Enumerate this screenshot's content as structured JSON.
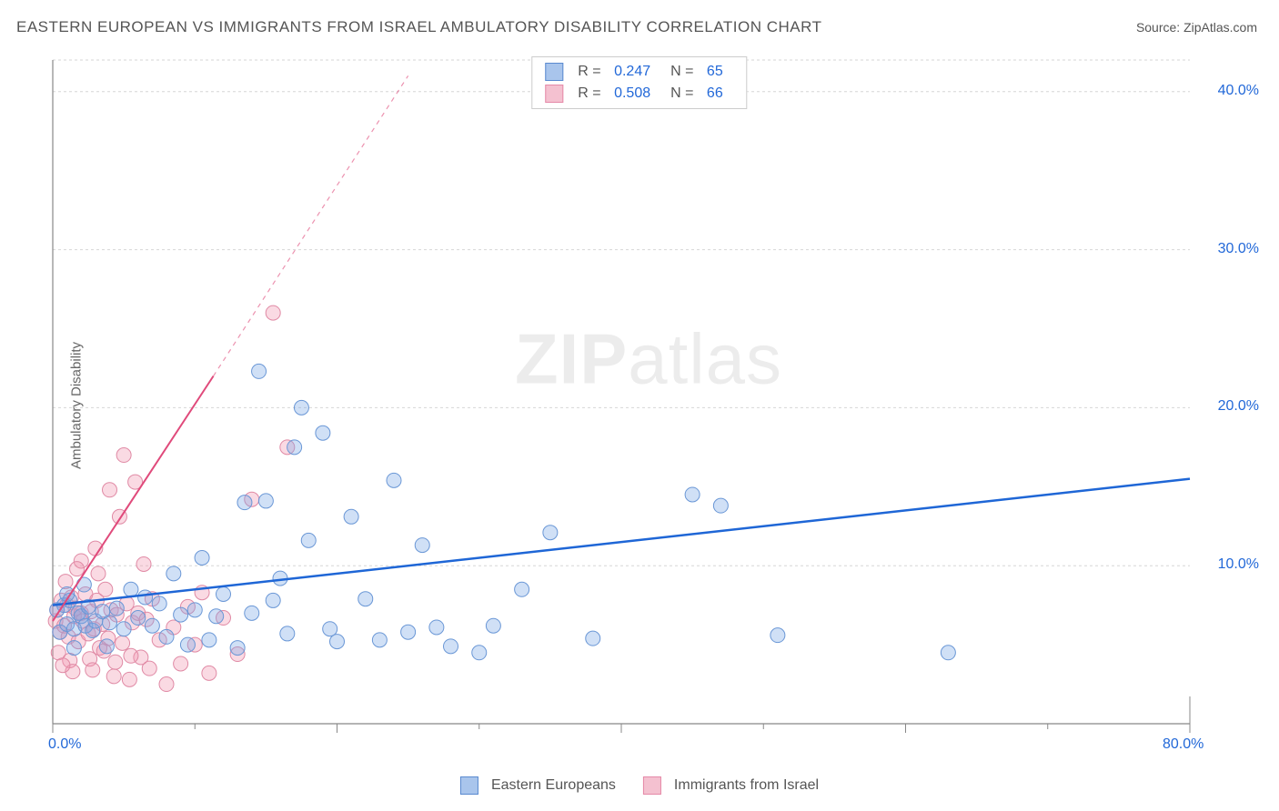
{
  "title": "EASTERN EUROPEAN VS IMMIGRANTS FROM ISRAEL AMBULATORY DISABILITY CORRELATION CHART",
  "source_label": "Source: ",
  "source_name": "ZipAtlas.com",
  "y_axis_label": "Ambulatory Disability",
  "watermark_bold": "ZIP",
  "watermark_rest": "atlas",
  "chart": {
    "type": "scatter",
    "xlim": [
      0,
      80
    ],
    "ylim": [
      0,
      42
    ],
    "x_ticks": [
      0,
      20,
      40,
      60,
      80
    ],
    "y_ticks": [
      10,
      20,
      30,
      40
    ],
    "x_tick_labels": [
      "0.0%",
      "",
      "",
      "",
      "80.0%"
    ],
    "y_tick_labels": [
      "10.0%",
      "20.0%",
      "30.0%",
      "40.0%"
    ],
    "x_minor_ticks": [
      10,
      30,
      50,
      70
    ],
    "grid_color": "#d6d6d6",
    "axis_color": "#888",
    "background_color": "#ffffff",
    "series": [
      {
        "name": "Eastern Europeans",
        "color_fill": "rgba(120,165,230,0.35)",
        "color_stroke": "#6a97d6",
        "swatch_fill": "#a9c5ec",
        "swatch_border": "#5a8ad0",
        "marker_radius": 8,
        "R": "0.247",
        "N": "65",
        "trend": {
          "x1": 0,
          "y1": 7.5,
          "x2": 80,
          "y2": 15.5,
          "color": "#1e66d6",
          "width": 2.5,
          "dash": ""
        },
        "points": [
          [
            0.3,
            7.2
          ],
          [
            0.5,
            5.8
          ],
          [
            0.8,
            7.5
          ],
          [
            1.0,
            6.3
          ],
          [
            1.2,
            7.8
          ],
          [
            1.5,
            6.0
          ],
          [
            1.8,
            7.0
          ],
          [
            2.0,
            6.8
          ],
          [
            2.3,
            6.2
          ],
          [
            2.5,
            7.4
          ],
          [
            2.8,
            5.9
          ],
          [
            3.0,
            6.5
          ],
          [
            3.5,
            7.1
          ],
          [
            4.0,
            6.4
          ],
          [
            4.5,
            7.3
          ],
          [
            5.0,
            6.0
          ],
          [
            5.5,
            8.5
          ],
          [
            6.0,
            6.7
          ],
          [
            6.5,
            8.0
          ],
          [
            7.0,
            6.2
          ],
          [
            7.5,
            7.6
          ],
          [
            8.0,
            5.5
          ],
          [
            8.5,
            9.5
          ],
          [
            9.0,
            6.9
          ],
          [
            9.5,
            5.0
          ],
          [
            10.0,
            7.2
          ],
          [
            10.5,
            10.5
          ],
          [
            11.0,
            5.3
          ],
          [
            11.5,
            6.8
          ],
          [
            12.0,
            8.2
          ],
          [
            13.0,
            4.8
          ],
          [
            13.5,
            14.0
          ],
          [
            14.0,
            7.0
          ],
          [
            14.5,
            22.3
          ],
          [
            15.0,
            14.1
          ],
          [
            15.5,
            7.8
          ],
          [
            16.0,
            9.2
          ],
          [
            16.5,
            5.7
          ],
          [
            17.0,
            17.5
          ],
          [
            17.5,
            20.0
          ],
          [
            18.0,
            11.6
          ],
          [
            19.0,
            18.4
          ],
          [
            19.5,
            6.0
          ],
          [
            20.0,
            5.2
          ],
          [
            21.0,
            13.1
          ],
          [
            22.0,
            7.9
          ],
          [
            23.0,
            5.3
          ],
          [
            24.0,
            15.4
          ],
          [
            25.0,
            5.8
          ],
          [
            26.0,
            11.3
          ],
          [
            27.0,
            6.1
          ],
          [
            28.0,
            4.9
          ],
          [
            30.0,
            4.5
          ],
          [
            31.0,
            6.2
          ],
          [
            33.0,
            8.5
          ],
          [
            35.0,
            12.1
          ],
          [
            38.0,
            5.4
          ],
          [
            45.0,
            14.5
          ],
          [
            47.0,
            13.8
          ],
          [
            51.0,
            5.6
          ],
          [
            63.0,
            4.5
          ],
          [
            1.0,
            8.2
          ],
          [
            1.5,
            4.8
          ],
          [
            2.2,
            8.8
          ],
          [
            3.8,
            4.9
          ]
        ]
      },
      {
        "name": "Immigrants from Israel",
        "color_fill": "rgba(240,150,175,0.35)",
        "color_stroke": "#e08aa5",
        "swatch_fill": "#f4c1d0",
        "swatch_border": "#e589a8",
        "marker_radius": 8,
        "R": "0.508",
        "N": "66",
        "trend": {
          "x1": 0,
          "y1": 6.5,
          "x2": 25,
          "y2": 41,
          "color": "#e04a7b",
          "width": 2,
          "dash": "",
          "dash_ext": {
            "x1": 11.3,
            "y1": 22.0,
            "x2": 25,
            "y2": 41,
            "dash": "5,5"
          },
          "solid_end": 11.3,
          "solid_end_y": 22.0
        },
        "points": [
          [
            0.2,
            6.5
          ],
          [
            0.3,
            7.2
          ],
          [
            0.5,
            5.8
          ],
          [
            0.6,
            7.8
          ],
          [
            0.8,
            6.2
          ],
          [
            1.0,
            7.5
          ],
          [
            1.1,
            5.5
          ],
          [
            1.3,
            8.0
          ],
          [
            1.5,
            6.8
          ],
          [
            1.6,
            7.3
          ],
          [
            1.8,
            5.2
          ],
          [
            2.0,
            7.0
          ],
          [
            2.1,
            6.5
          ],
          [
            2.3,
            8.2
          ],
          [
            2.5,
            5.7
          ],
          [
            2.7,
            7.1
          ],
          [
            2.9,
            6.0
          ],
          [
            3.0,
            11.1
          ],
          [
            3.1,
            7.8
          ],
          [
            3.3,
            4.8
          ],
          [
            3.5,
            6.3
          ],
          [
            3.7,
            8.5
          ],
          [
            3.9,
            5.4
          ],
          [
            4.0,
            14.8
          ],
          [
            4.1,
            7.2
          ],
          [
            4.3,
            3.0
          ],
          [
            4.5,
            6.9
          ],
          [
            4.7,
            13.1
          ],
          [
            4.9,
            5.1
          ],
          [
            5.0,
            17.0
          ],
          [
            5.2,
            7.6
          ],
          [
            5.4,
            2.8
          ],
          [
            5.6,
            6.4
          ],
          [
            5.8,
            15.3
          ],
          [
            6.0,
            7.0
          ],
          [
            6.2,
            4.2
          ],
          [
            6.4,
            10.1
          ],
          [
            6.6,
            6.6
          ],
          [
            6.8,
            3.5
          ],
          [
            7.0,
            7.9
          ],
          [
            7.5,
            5.3
          ],
          [
            8.0,
            2.5
          ],
          [
            8.5,
            6.1
          ],
          [
            9.0,
            3.8
          ],
          [
            9.5,
            7.4
          ],
          [
            10.0,
            5.0
          ],
          [
            10.5,
            8.3
          ],
          [
            11.0,
            3.2
          ],
          [
            12.0,
            6.7
          ],
          [
            13.0,
            4.4
          ],
          [
            14.0,
            14.2
          ],
          [
            15.5,
            26.0
          ],
          [
            16.5,
            17.5
          ],
          [
            2.0,
            10.3
          ],
          [
            0.4,
            4.5
          ],
          [
            1.2,
            4.0
          ],
          [
            0.9,
            9.0
          ],
          [
            1.4,
            3.3
          ],
          [
            2.6,
            4.1
          ],
          [
            3.2,
            9.5
          ],
          [
            0.7,
            3.7
          ],
          [
            1.7,
            9.8
          ],
          [
            2.8,
            3.4
          ],
          [
            3.6,
            4.6
          ],
          [
            4.4,
            3.9
          ],
          [
            5.5,
            4.3
          ]
        ]
      }
    ]
  },
  "legend": {
    "items": [
      {
        "label": "Eastern Europeans",
        "series_idx": 0
      },
      {
        "label": "Immigrants from Israel",
        "series_idx": 1
      }
    ]
  }
}
